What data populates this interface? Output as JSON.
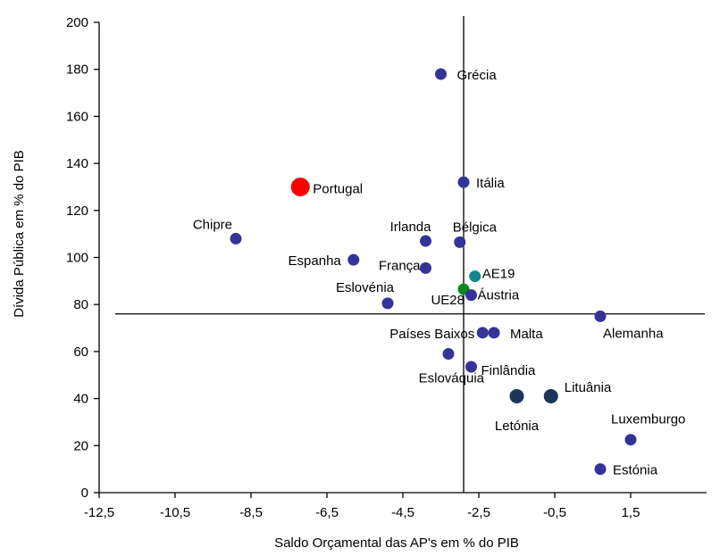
{
  "chart_data": {
    "type": "scatter",
    "xlabel": "Saldo Orçamental das AP's em % do PIB",
    "ylabel": "Dívida Pública em % do PIB",
    "xlim": [
      -12.5,
      3.5
    ],
    "ylim": [
      0,
      200
    ],
    "x_ticks": [
      -12.5,
      -10.5,
      -8.5,
      -6.5,
      -4.5,
      -2.5,
      -0.5,
      1.5
    ],
    "x_tick_labels": [
      "-12,5",
      "-10,5",
      "-8,5",
      "-6,5",
      "-4,5",
      "-2,5",
      "-0,5",
      "1,5"
    ],
    "y_ticks": [
      0,
      20,
      40,
      60,
      80,
      100,
      120,
      140,
      160,
      180,
      200
    ],
    "y_tick_labels": [
      "0",
      "20",
      "40",
      "60",
      "80",
      "100",
      "120",
      "140",
      "160",
      "180",
      "200"
    ],
    "ref_lines": {
      "x": -2.9,
      "y": 76
    },
    "grid": false,
    "legend": "none",
    "colors": {
      "default": "#333399",
      "portugal": "#ff0000",
      "ae19": "#14868b",
      "ue28": "#0a8a1f",
      "baltic": "#1d3557"
    },
    "points": [
      {
        "name": "Grécia",
        "x": -3.5,
        "y": 178,
        "color": "default",
        "size": "normal"
      },
      {
        "name": "Itália",
        "x": -2.9,
        "y": 132,
        "color": "default",
        "size": "normal"
      },
      {
        "name": "Portugal",
        "x": -7.2,
        "y": 130,
        "color": "portugal",
        "size": "large"
      },
      {
        "name": "Chipre",
        "x": -8.9,
        "y": 108,
        "color": "default",
        "size": "normal"
      },
      {
        "name": "Irlanda",
        "x": -3.9,
        "y": 107,
        "color": "default",
        "size": "normal"
      },
      {
        "name": "Bélgica",
        "x": -3.0,
        "y": 106.5,
        "color": "default",
        "size": "normal"
      },
      {
        "name": "Espanha",
        "x": -5.8,
        "y": 99,
        "color": "default",
        "size": "normal"
      },
      {
        "name": "França",
        "x": -3.9,
        "y": 95.5,
        "color": "default",
        "size": "normal"
      },
      {
        "name": "AE19",
        "x": -2.6,
        "y": 92,
        "color": "ae19",
        "size": "normal"
      },
      {
        "name": "UE28",
        "x": -2.9,
        "y": 86.5,
        "color": "ue28",
        "size": "normal"
      },
      {
        "name": "Áustria",
        "x": -2.7,
        "y": 84,
        "color": "default",
        "size": "normal"
      },
      {
        "name": "Eslovénia",
        "x": -4.9,
        "y": 80.5,
        "color": "default",
        "size": "normal"
      },
      {
        "name": "Alemanha",
        "x": 0.7,
        "y": 75,
        "color": "default",
        "size": "normal"
      },
      {
        "name": "Países Baixos",
        "x": -2.4,
        "y": 68,
        "color": "default",
        "size": "normal"
      },
      {
        "name": "Malta",
        "x": -2.1,
        "y": 68,
        "color": "default",
        "size": "normal"
      },
      {
        "name": "Eslováquia",
        "x": -3.3,
        "y": 59,
        "color": "default",
        "size": "normal"
      },
      {
        "name": "Finlândia",
        "x": -2.7,
        "y": 53.5,
        "color": "default",
        "size": "normal"
      },
      {
        "name": "Letónia",
        "x": -1.5,
        "y": 41,
        "color": "baltic",
        "size": "medium"
      },
      {
        "name": "Lituânia",
        "x": -0.6,
        "y": 41,
        "color": "baltic",
        "size": "medium"
      },
      {
        "name": "Luxemburgo",
        "x": 1.5,
        "y": 22.5,
        "color": "default",
        "size": "normal"
      },
      {
        "name": "Estónia",
        "x": 0.7,
        "y": 10,
        "color": "default",
        "size": "normal"
      }
    ]
  }
}
